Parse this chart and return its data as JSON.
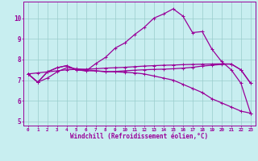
{
  "xlabel": "Windchill (Refroidissement éolien,°C)",
  "bg_color": "#c8eef0",
  "line_color": "#990099",
  "grid_color": "#99cccc",
  "xlim": [
    -0.5,
    23.5
  ],
  "ylim": [
    4.8,
    10.8
  ],
  "yticks": [
    5,
    6,
    7,
    8,
    9,
    10
  ],
  "xticks": [
    0,
    1,
    2,
    3,
    4,
    5,
    6,
    7,
    8,
    9,
    10,
    11,
    12,
    13,
    14,
    15,
    16,
    17,
    18,
    19,
    20,
    21,
    22,
    23
  ],
  "line1_x": [
    0,
    1,
    2,
    3,
    4,
    5,
    6,
    7,
    8,
    9,
    10,
    11,
    12,
    13,
    14,
    15,
    16,
    17,
    18,
    19,
    20,
    21,
    22,
    23
  ],
  "line1_y": [
    7.3,
    6.9,
    7.1,
    7.4,
    7.6,
    7.55,
    7.5,
    7.45,
    7.4,
    7.42,
    7.45,
    7.48,
    7.5,
    7.52,
    7.53,
    7.55,
    7.58,
    7.62,
    7.68,
    7.72,
    7.76,
    7.78,
    7.5,
    6.85
  ],
  "line2_x": [
    0,
    1,
    2,
    3,
    4,
    5,
    6,
    7,
    8,
    9,
    10,
    11,
    12,
    13,
    14,
    15,
    16,
    17,
    18,
    19,
    20,
    21,
    22,
    23
  ],
  "line2_y": [
    7.3,
    6.9,
    7.4,
    7.6,
    7.7,
    7.5,
    7.45,
    7.8,
    8.1,
    8.55,
    8.8,
    9.2,
    9.55,
    10.0,
    10.2,
    10.45,
    10.1,
    9.3,
    9.35,
    8.5,
    7.9,
    7.5,
    6.85,
    5.4
  ],
  "line3_x": [
    0,
    1,
    2,
    3,
    4,
    5,
    6,
    7,
    8,
    9,
    10,
    11,
    12,
    13,
    14,
    15,
    16,
    17,
    18,
    19,
    20,
    21,
    22,
    23
  ],
  "line3_y": [
    7.3,
    6.9,
    7.4,
    7.6,
    7.7,
    7.5,
    7.45,
    7.45,
    7.42,
    7.4,
    7.38,
    7.35,
    7.3,
    7.2,
    7.1,
    7.0,
    6.8,
    6.6,
    6.4,
    6.1,
    5.9,
    5.7,
    5.5,
    5.4
  ],
  "line4_x": [
    0,
    1,
    2,
    3,
    4,
    5,
    6,
    7,
    8,
    9,
    10,
    11,
    12,
    13,
    14,
    15,
    16,
    17,
    18,
    19,
    20,
    21,
    22,
    23
  ],
  "line4_y": [
    7.3,
    7.35,
    7.4,
    7.45,
    7.5,
    7.52,
    7.53,
    7.55,
    7.58,
    7.6,
    7.62,
    7.65,
    7.68,
    7.7,
    7.72,
    7.73,
    7.75,
    7.76,
    7.77,
    7.78,
    7.79,
    7.78,
    7.5,
    6.85
  ]
}
